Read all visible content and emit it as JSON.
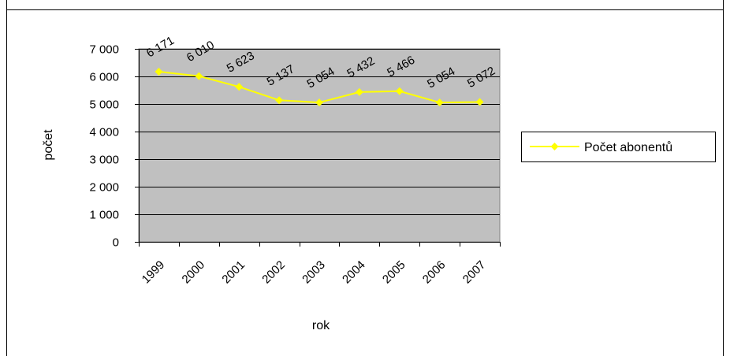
{
  "chart_data": {
    "type": "line",
    "categories": [
      "1999",
      "2000",
      "2001",
      "2002",
      "2003",
      "2004",
      "2005",
      "2006",
      "2007"
    ],
    "series": [
      {
        "name": "Počet abonentů",
        "values": [
          6171,
          6010,
          5623,
          5137,
          5054,
          5432,
          5466,
          5054,
          5072
        ],
        "labels": [
          "6 171",
          "6 010",
          "5 623",
          "5 137",
          "5 054",
          "5 432",
          "5 466",
          "5 054",
          "5 072"
        ],
        "color": "#FFFF00"
      }
    ],
    "xlabel": "rok",
    "ylabel": "počet",
    "ylim": [
      0,
      7000
    ],
    "yticks": [
      0,
      1000,
      2000,
      3000,
      4000,
      5000,
      6000,
      7000
    ],
    "ytick_labels": [
      "0",
      "1 000",
      "2 000",
      "3 000",
      "4 000",
      "5 000",
      "6 000",
      "7 000"
    ],
    "grid": true,
    "plot_background": "#C0C0C0",
    "legend": "right"
  }
}
